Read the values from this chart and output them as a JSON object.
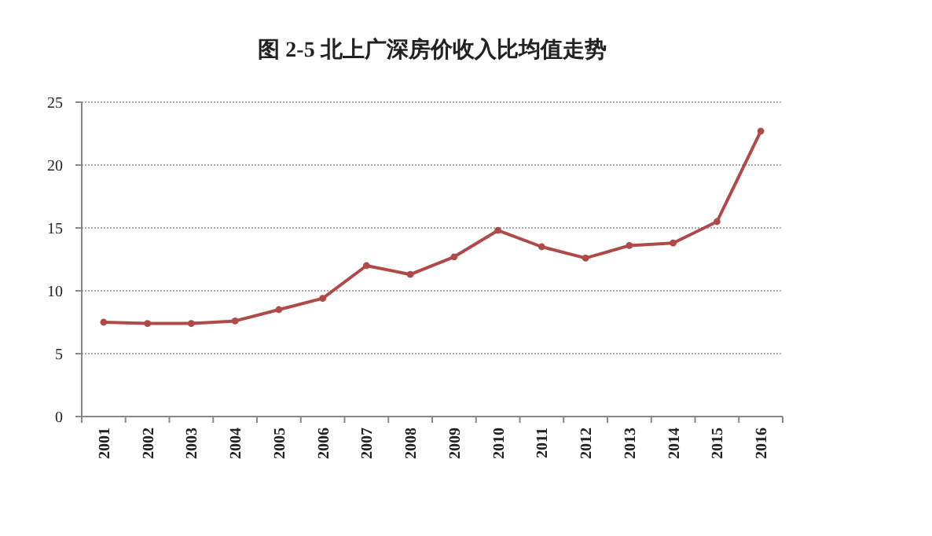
{
  "chart_data": {
    "type": "line",
    "title": "图 2-5  北上广深房价收入比均值走势",
    "categories": [
      "2001",
      "2002",
      "2003",
      "2004",
      "2005",
      "2006",
      "2007",
      "2008",
      "2009",
      "2010",
      "2011",
      "2012",
      "2013",
      "2014",
      "2015",
      "2016"
    ],
    "series": [
      {
        "color": "#b04a48",
        "values": [
          7.5,
          7.4,
          7.4,
          7.6,
          8.5,
          9.4,
          12.0,
          11.3,
          12.7,
          14.8,
          13.5,
          12.6,
          13.6,
          13.8,
          15.5,
          22.7
        ]
      }
    ],
    "ylim": [
      0,
      25
    ],
    "yticks": [
      0,
      5,
      10,
      15,
      20,
      25
    ],
    "grid": "y",
    "marker": "circle",
    "line_style": "solid"
  }
}
